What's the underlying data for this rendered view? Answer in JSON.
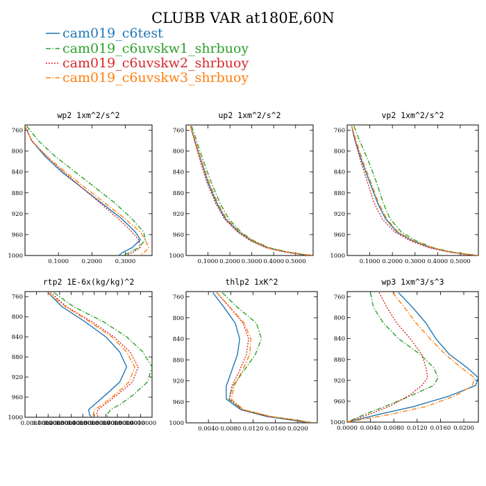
{
  "figure": {
    "title": "CLUBB VAR at180E,60N"
  },
  "legend": [
    {
      "name": "cam019_c6test",
      "color": "#1f77b4",
      "dash": "solid"
    },
    {
      "name": "cam019_c6uvskw1_shrbuoy",
      "color": "#2ca02c",
      "dash": "dashdot"
    },
    {
      "name": "cam019_c6uvskw2_shrbuoy",
      "color": "#d62728",
      "dash": "dot"
    },
    {
      "name": "cam019_c6uvskw3_shrbuoy",
      "color": "#ff7f0e",
      "dash": "dashdot"
    }
  ],
  "chart_data": [
    {
      "type": "line",
      "title": "wp2  1xm^2/s^2",
      "xlim": [
        0,
        0.38
      ],
      "ylim": [
        1000,
        750
      ],
      "y_inverted": true,
      "xticks": [
        0.1,
        0.2,
        0.3
      ],
      "xtick_labels": [
        "0.1000",
        "0.2000",
        "0.3000"
      ],
      "yticks": [
        760,
        800,
        840,
        880,
        920,
        960,
        1000
      ],
      "y": [
        752,
        780,
        810,
        840,
        870,
        900,
        930,
        955,
        970,
        985,
        995,
        1000
      ],
      "series": [
        {
          "name": "cam019_c6test",
          "x": [
            0.0,
            0.02,
            0.06,
            0.11,
            0.17,
            0.23,
            0.29,
            0.33,
            0.345,
            0.32,
            0.29,
            0.28
          ]
        },
        {
          "name": "cam019_c6uvskw1_shrbuoy",
          "x": [
            0.005,
            0.04,
            0.09,
            0.15,
            0.21,
            0.27,
            0.32,
            0.355,
            0.36,
            0.34,
            0.31,
            0.29
          ]
        },
        {
          "name": "cam019_c6uvskw2_shrbuoy",
          "x": [
            0.0,
            0.02,
            0.065,
            0.115,
            0.17,
            0.225,
            0.28,
            0.32,
            0.34,
            0.345,
            0.32,
            0.3
          ]
        },
        {
          "name": "cam019_c6uvskw3_shrbuoy",
          "x": [
            0.0,
            0.02,
            0.065,
            0.12,
            0.18,
            0.24,
            0.3,
            0.345,
            0.36,
            0.37,
            0.355,
            0.34
          ]
        }
      ]
    },
    {
      "type": "line",
      "title": "up2  1xm^2/s^2",
      "xlim": [
        0,
        0.58
      ],
      "ylim": [
        1000,
        750
      ],
      "y_inverted": true,
      "xticks": [
        0.1,
        0.2,
        0.3,
        0.4,
        0.5
      ],
      "xtick_labels": [
        "0.1000",
        "0.2000",
        "0.3000",
        "0.4000",
        "0.5000"
      ],
      "yticks": [
        760,
        800,
        840,
        880,
        920,
        960,
        1000
      ],
      "y": [
        752,
        780,
        820,
        860,
        900,
        930,
        955,
        972,
        985,
        993,
        998,
        1000
      ],
      "series": [
        {
          "name": "cam019_c6test",
          "x": [
            0.02,
            0.04,
            0.07,
            0.1,
            0.14,
            0.18,
            0.24,
            0.3,
            0.37,
            0.45,
            0.53,
            0.58
          ]
        },
        {
          "name": "cam019_c6uvskw1_shrbuoy",
          "x": [
            0.025,
            0.048,
            0.08,
            0.115,
            0.155,
            0.195,
            0.25,
            0.31,
            0.38,
            0.46,
            0.54,
            0.58
          ]
        },
        {
          "name": "cam019_c6uvskw2_shrbuoy",
          "x": [
            0.02,
            0.038,
            0.065,
            0.095,
            0.135,
            0.175,
            0.235,
            0.295,
            0.365,
            0.445,
            0.525,
            0.58
          ]
        },
        {
          "name": "cam019_c6uvskw3_shrbuoy",
          "x": [
            0.02,
            0.042,
            0.072,
            0.105,
            0.145,
            0.185,
            0.245,
            0.305,
            0.375,
            0.455,
            0.535,
            0.58
          ]
        }
      ]
    },
    {
      "type": "line",
      "title": "vp2  1xm^2/s^2",
      "xlim": [
        0,
        0.58
      ],
      "ylim": [
        1000,
        750
      ],
      "y_inverted": true,
      "xticks": [
        0.1,
        0.2,
        0.3,
        0.4,
        0.5
      ],
      "xtick_labels": [
        "0.1000",
        "0.2000",
        "0.3000",
        "0.4000",
        "0.5000"
      ],
      "yticks": [
        760,
        800,
        840,
        880,
        920,
        960,
        1000
      ],
      "y": [
        752,
        780,
        820,
        860,
        900,
        930,
        955,
        972,
        985,
        993,
        998,
        1000
      ],
      "series": [
        {
          "name": "cam019_c6test",
          "x": [
            0.02,
            0.035,
            0.065,
            0.1,
            0.135,
            0.17,
            0.22,
            0.29,
            0.37,
            0.45,
            0.53,
            0.58
          ]
        },
        {
          "name": "cam019_c6uvskw1_shrbuoy",
          "x": [
            0.03,
            0.055,
            0.095,
            0.13,
            0.16,
            0.19,
            0.24,
            0.305,
            0.38,
            0.46,
            0.54,
            0.58
          ]
        },
        {
          "name": "cam019_c6uvskw2_shrbuoy",
          "x": [
            0.02,
            0.035,
            0.06,
            0.09,
            0.12,
            0.155,
            0.21,
            0.28,
            0.36,
            0.445,
            0.525,
            0.58
          ]
        },
        {
          "name": "cam019_c6uvskw3_shrbuoy",
          "x": [
            0.02,
            0.04,
            0.07,
            0.105,
            0.14,
            0.175,
            0.225,
            0.295,
            0.375,
            0.455,
            0.535,
            0.58
          ]
        }
      ]
    },
    {
      "type": "line",
      "title": "rtp2  1E-6x(kg/kg)^2",
      "xlim": [
        0,
        0.0011
      ],
      "ylim": [
        1000,
        750
      ],
      "y_inverted": true,
      "xticks": [
        0.0001,
        0.0002,
        0.0003,
        0.0004,
        0.0005,
        0.0006,
        0.0007,
        0.0008,
        0.0009,
        0.001
      ],
      "xtick_labels": [
        "0.0001000",
        "0.0002000",
        "0.0003000",
        "0.0004000",
        "0.0005000",
        "0.0006000",
        "0.0007000",
        "0.0008000",
        "0.0009000",
        "0.0010000"
      ],
      "yticks": [
        760,
        800,
        840,
        880,
        920,
        960,
        1000
      ],
      "y": [
        752,
        780,
        810,
        840,
        870,
        900,
        930,
        955,
        975,
        985,
        995,
        1000
      ],
      "series": [
        {
          "name": "cam019_c6test",
          "x": [
            0.0002,
            0.00032,
            0.00052,
            0.0007,
            0.00082,
            0.00088,
            0.00082,
            0.0007,
            0.0006,
            0.00055,
            0.00056,
            0.00058
          ]
        },
        {
          "name": "cam019_c6uvskw1_shrbuoy",
          "x": [
            0.00025,
            0.00042,
            0.00068,
            0.00088,
            0.00102,
            0.0011,
            0.00106,
            0.00094,
            0.00082,
            0.00074,
            0.00071,
            0.00072
          ]
        },
        {
          "name": "cam019_c6uvskw2_shrbuoy",
          "x": [
            0.00022,
            0.00036,
            0.00058,
            0.00077,
            0.00091,
            0.00098,
            0.00093,
            0.0008,
            0.00069,
            0.00063,
            0.00062,
            0.00064
          ]
        },
        {
          "name": "cam019_c6uvskw3_shrbuoy",
          "x": [
            0.0002,
            0.00035,
            0.00056,
            0.00075,
            0.00088,
            0.00095,
            0.0009,
            0.00078,
            0.00067,
            0.0006,
            0.00059,
            0.00061
          ]
        }
      ]
    },
    {
      "type": "line",
      "title": "thlp2  1xK^2",
      "xlim": [
        0,
        0.0235
      ],
      "ylim": [
        1000,
        750
      ],
      "y_inverted": true,
      "xticks": [
        0.004,
        0.008,
        0.012,
        0.016,
        0.02
      ],
      "xtick_labels": [
        "0.0040",
        "0.0080",
        "0.0120",
        "0.0160",
        "0.0200"
      ],
      "yticks": [
        760,
        800,
        840,
        880,
        920,
        960,
        1000
      ],
      "y": [
        752,
        780,
        810,
        840,
        870,
        900,
        930,
        955,
        975,
        988,
        995,
        1000
      ],
      "series": [
        {
          "name": "cam019_c6test",
          "x": [
            0.0048,
            0.0068,
            0.0088,
            0.0096,
            0.0092,
            0.0082,
            0.0072,
            0.0072,
            0.0098,
            0.0145,
            0.019,
            0.022
          ]
        },
        {
          "name": "cam019_c6uvskw1_shrbuoy",
          "x": [
            0.0065,
            0.0092,
            0.0126,
            0.0135,
            0.0124,
            0.0104,
            0.0084,
            0.0076,
            0.0102,
            0.0152,
            0.02,
            0.0228
          ]
        },
        {
          "name": "cam019_c6uvskw2_shrbuoy",
          "x": [
            0.0055,
            0.0078,
            0.0102,
            0.0112,
            0.0108,
            0.0096,
            0.0082,
            0.0078,
            0.01,
            0.0148,
            0.0195,
            0.0222
          ]
        },
        {
          "name": "cam019_c6uvskw3_shrbuoy",
          "x": [
            0.0055,
            0.0079,
            0.0104,
            0.0116,
            0.0114,
            0.0101,
            0.0086,
            0.0081,
            0.0103,
            0.0152,
            0.0198,
            0.0225
          ]
        }
      ]
    },
    {
      "type": "line",
      "title": "wp3  1xm^3/s^3",
      "xlim": [
        0,
        0.0225
      ],
      "ylim": [
        1000,
        750
      ],
      "y_inverted": true,
      "xticks": [
        0,
        0.004,
        0.008,
        0.012,
        0.016,
        0.02
      ],
      "xtick_labels": [
        "0.0000",
        "0.0040",
        "0.0080",
        "0.0120",
        "0.0160",
        "0.0200"
      ],
      "yticks": [
        760,
        800,
        840,
        880,
        920,
        960,
        1000
      ],
      "y": [
        752,
        780,
        810,
        840,
        870,
        895,
        915,
        930,
        950,
        970,
        985,
        1000
      ],
      "series": [
        {
          "name": "cam019_c6test",
          "x": [
            0.0088,
            0.0112,
            0.0135,
            0.0152,
            0.0175,
            0.0205,
            0.0225,
            0.022,
            0.0175,
            0.0115,
            0.0055,
            0.0
          ]
        },
        {
          "name": "cam019_c6uvskw1_shrbuoy",
          "x": [
            0.004,
            0.0045,
            0.0062,
            0.0088,
            0.0125,
            0.0148,
            0.0156,
            0.0148,
            0.0108,
            0.0065,
            0.003,
            0.0
          ]
        },
        {
          "name": "cam019_c6uvskw2_shrbuoy",
          "x": [
            0.0055,
            0.0068,
            0.0085,
            0.0108,
            0.0128,
            0.0135,
            0.0138,
            0.0128,
            0.0105,
            0.0072,
            0.0038,
            0.0
          ]
        },
        {
          "name": "cam019_c6uvskw3_shrbuoy",
          "x": [
            0.0078,
            0.0098,
            0.0118,
            0.0142,
            0.0168,
            0.0195,
            0.0218,
            0.0215,
            0.0185,
            0.0135,
            0.0075,
            0.0
          ]
        }
      ]
    }
  ]
}
